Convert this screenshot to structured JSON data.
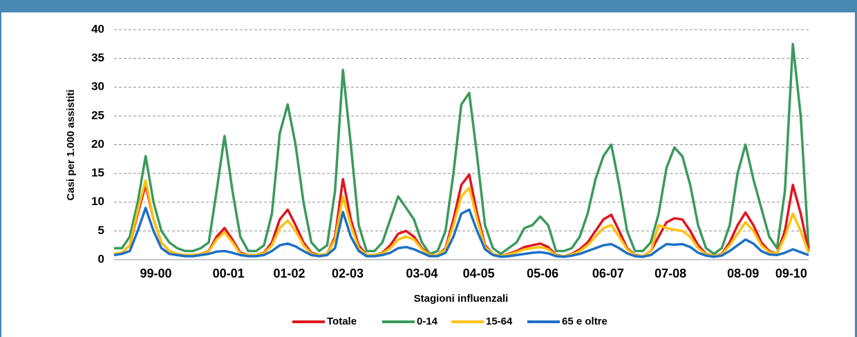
{
  "chart_data": {
    "type": "line",
    "y_label": "Casi per 1.000 assistiti",
    "x_label": "Stagioni influenzali",
    "x": [
      0,
      1,
      2,
      3,
      4,
      5,
      6,
      7,
      8,
      9,
      10,
      11,
      12,
      13,
      14,
      15,
      16,
      17,
      18,
      19,
      20,
      21,
      22,
      23,
      24,
      25,
      26,
      27,
      28,
      29,
      30,
      31,
      32,
      33,
      34,
      35,
      36,
      37,
      38,
      39,
      40,
      41,
      42,
      43,
      44,
      45,
      46,
      47,
      48,
      49,
      50,
      51,
      52,
      53,
      54,
      55,
      56,
      57,
      58,
      59,
      60,
      61,
      62,
      63,
      64,
      65,
      66,
      67,
      68,
      69,
      70,
      71,
      72,
      73,
      74,
      75,
      76,
      77,
      78,
      79,
      80,
      81,
      82,
      83,
      84,
      85,
      86,
      87,
      88
    ],
    "xlim": [
      0,
      88
    ],
    "xticks": [
      {
        "value": 5.3,
        "label": "99-00"
      },
      {
        "value": 14.5,
        "label": "00-01"
      },
      {
        "value": 22.2,
        "label": "01-02"
      },
      {
        "value": 29.6,
        "label": "02-03"
      },
      {
        "value": 39,
        "label": "03-04"
      },
      {
        "value": 46.2,
        "label": "04-05"
      },
      {
        "value": 54.3,
        "label": "05-06"
      },
      {
        "value": 62.6,
        "label": "06-07"
      },
      {
        "value": 70.5,
        "label": "07-08"
      },
      {
        "value": 79.7,
        "label": "08-09"
      },
      {
        "value": 85.8,
        "label": "09-10"
      }
    ],
    "ylim": [
      0,
      40
    ],
    "yticks": [
      0,
      5,
      10,
      15,
      20,
      25,
      30,
      35,
      40
    ],
    "grid": true,
    "legend": "bottom",
    "series": [
      {
        "name": "Totale",
        "color": "#e0141e",
        "values": [
          1,
          1.2,
          2.5,
          8,
          13,
          7,
          3,
          1.5,
          1,
          0.8,
          0.8,
          1,
          1.5,
          4,
          5.5,
          3.5,
          1.2,
          0.8,
          0.8,
          1.2,
          3,
          7,
          8.7,
          6,
          3,
          1.2,
          0.8,
          1,
          4,
          14,
          7,
          2.5,
          0.8,
          0.8,
          1.2,
          2.5,
          4.5,
          5,
          4,
          2,
          0.8,
          0.8,
          2,
          7,
          13,
          14.8,
          8,
          2.5,
          1,
          0.6,
          1,
          1.5,
          2.2,
          2.5,
          2.8,
          2.2,
          0.8,
          0.6,
          1,
          1.8,
          3,
          5,
          7,
          7.8,
          5,
          2,
          0.8,
          0.6,
          1.5,
          4,
          6.5,
          7.2,
          7,
          5,
          2.5,
          1,
          0.6,
          1,
          3,
          6,
          8.2,
          6,
          3,
          1.5,
          1,
          5,
          13,
          8,
          1.5
        ]
      },
      {
        "name": "0-14",
        "color": "#3b9a5c",
        "values": [
          2,
          2,
          4,
          10,
          18,
          10,
          5,
          3,
          2,
          1.5,
          1.5,
          2,
          3,
          12,
          21.5,
          12,
          4,
          1.5,
          1.5,
          2.5,
          8,
          22,
          27,
          20,
          10,
          3,
          1.5,
          2.5,
          12,
          33,
          20,
          6,
          1.5,
          1.5,
          3,
          7,
          11,
          9,
          7,
          3,
          1,
          1.5,
          5,
          15,
          27,
          29,
          18,
          6,
          2,
          1,
          2,
          3,
          5.5,
          6,
          7.5,
          6,
          1.5,
          1.5,
          2,
          4,
          8,
          14,
          18,
          20,
          13,
          5,
          1.5,
          1.5,
          3,
          8,
          16,
          19.5,
          18,
          13,
          6,
          2,
          1,
          2,
          6,
          15,
          20,
          14,
          9,
          4,
          2,
          12,
          37.5,
          25,
          2
        ]
      },
      {
        "name": "15-64",
        "color": "#ffc20e",
        "values": [
          1,
          1.2,
          2.5,
          8.5,
          13.8,
          7,
          3,
          1.5,
          1,
          0.8,
          0.8,
          1,
          1.4,
          3.5,
          4.8,
          3,
          1,
          0.8,
          0.8,
          1.1,
          2.5,
          5.5,
          6.8,
          5,
          2.5,
          1,
          0.8,
          1,
          3.5,
          11,
          6,
          2,
          0.8,
          0.8,
          1.1,
          2,
          3.5,
          4,
          3.5,
          1.8,
          0.8,
          0.8,
          1.8,
          6,
          11,
          12.5,
          7,
          2.2,
          1,
          0.6,
          0.9,
          1.3,
          1.8,
          2,
          2.2,
          1.8,
          0.7,
          0.6,
          0.9,
          1.5,
          2.5,
          4,
          5.5,
          6,
          4,
          1.8,
          0.7,
          0.6,
          1.5,
          6,
          5.5,
          5.2,
          5,
          4,
          2,
          0.9,
          0.6,
          0.9,
          2.5,
          4.5,
          6.5,
          5,
          2.5,
          1.3,
          1,
          4,
          8,
          5,
          1.2
        ]
      },
      {
        "name": "65 e oltre",
        "color": "#1d6fc6",
        "values": [
          0.8,
          1,
          1.5,
          5,
          9,
          5,
          2,
          1,
          0.8,
          0.6,
          0.6,
          0.8,
          1,
          1.4,
          1.5,
          1.2,
          0.8,
          0.6,
          0.6,
          0.8,
          1.5,
          2.5,
          2.8,
          2.3,
          1.5,
          0.8,
          0.6,
          0.8,
          2,
          8.3,
          4,
          1.5,
          0.6,
          0.6,
          0.8,
          1.2,
          2,
          2.2,
          1.8,
          1.2,
          0.6,
          0.6,
          1.2,
          4,
          8,
          8.7,
          5,
          1.8,
          0.8,
          0.5,
          0.6,
          0.8,
          1,
          1.2,
          1.3,
          1.1,
          0.6,
          0.5,
          0.7,
          1,
          1.5,
          2,
          2.5,
          2.7,
          2,
          1.1,
          0.6,
          0.5,
          0.8,
          1.8,
          2.7,
          2.6,
          2.7,
          2.2,
          1.2,
          0.7,
          0.5,
          0.7,
          1.5,
          2.5,
          3.5,
          2.8,
          1.5,
          0.9,
          0.8,
          1.2,
          1.8,
          1.3,
          0.8
        ]
      }
    ]
  }
}
